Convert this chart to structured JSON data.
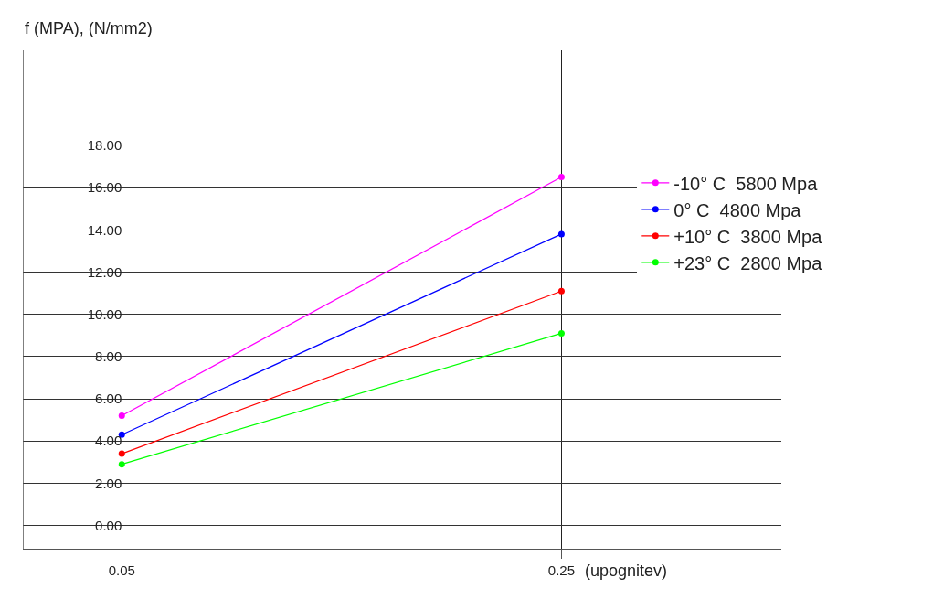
{
  "chart_data": {
    "type": "line",
    "ylabel": "f (MPA), (N/mm2)",
    "xlabel": "(upognitev)",
    "x": [
      0.05,
      0.25
    ],
    "series": [
      {
        "name": "-10° C  5800 Mpa",
        "color": "#ff00ff",
        "values": [
          5.2,
          16.5
        ]
      },
      {
        "name": "0° C  4800 Mpa",
        "color": "#0000ff",
        "values": [
          4.3,
          13.8
        ]
      },
      {
        "name": "+10° C  3800 Mpa",
        "color": "#ff0000",
        "values": [
          3.4,
          11.1
        ]
      },
      {
        "name": "+23° C  2800 Mpa",
        "color": "#00ff00",
        "values": [
          2.9,
          9.1
        ]
      }
    ],
    "xlim": [
      0.005,
      0.35
    ],
    "xticks": [
      0.05,
      0.25
    ],
    "ylim": [
      -1.1,
      22.5
    ],
    "yticks": [
      {
        "value": 0,
        "label": "0.00"
      },
      {
        "value": 2,
        "label": "2.00"
      },
      {
        "value": 4,
        "label": "4.00"
      },
      {
        "value": 6,
        "label": "6.00"
      },
      {
        "value": 8,
        "label": "8.00"
      },
      {
        "value": 10,
        "label": "10.00"
      },
      {
        "value": 12,
        "label": "12.00"
      },
      {
        "value": 14,
        "label": "14.00"
      },
      {
        "value": 16,
        "label": "16.00"
      },
      {
        "value": 18,
        "label": "18.00"
      }
    ],
    "grid": true,
    "legend": "top right",
    "marker": "circle",
    "line_style": "solid"
  }
}
